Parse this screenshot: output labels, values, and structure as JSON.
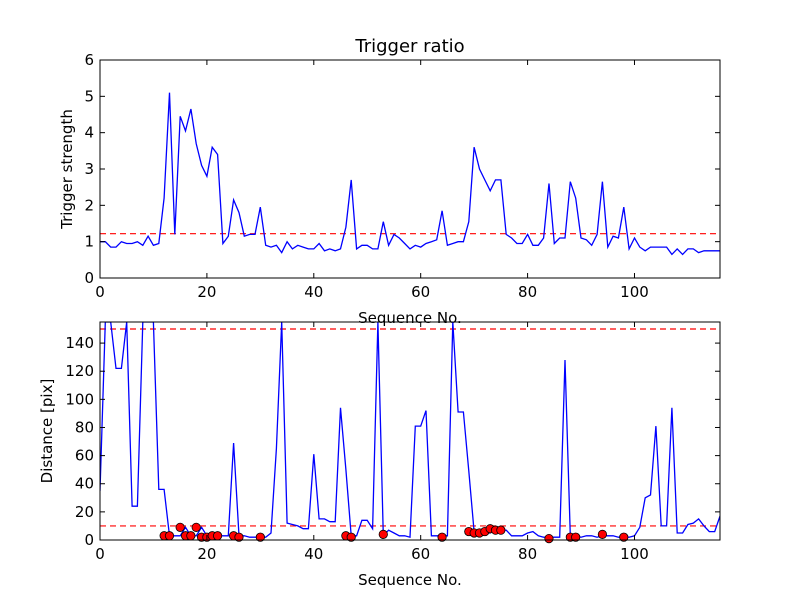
{
  "chart_data": [
    {
      "type": "line",
      "title": "Trigger ratio",
      "xlabel": "Sequence No.",
      "ylabel": "Trigger strength",
      "xlim": [
        0,
        116
      ],
      "ylim": [
        0,
        6
      ],
      "x_ticks": [
        0,
        20,
        40,
        60,
        80,
        100
      ],
      "y_ticks": [
        0,
        1,
        2,
        3,
        4,
        5,
        6
      ],
      "grid": false,
      "series": [
        {
          "color": "#0000ff",
          "x": [
            0,
            1,
            2,
            3,
            4,
            5,
            6,
            7,
            8,
            9,
            10,
            11,
            12,
            13,
            14,
            15,
            16,
            17,
            18,
            19,
            20,
            21,
            22,
            23,
            24,
            25,
            26,
            27,
            28,
            29,
            30,
            31,
            32,
            33,
            34,
            35,
            36,
            37,
            38,
            39,
            40,
            41,
            42,
            43,
            44,
            45,
            46,
            47,
            48,
            49,
            50,
            51,
            52,
            53,
            54,
            55,
            56,
            57,
            58,
            59,
            60,
            61,
            62,
            63,
            64,
            65,
            66,
            67,
            68,
            69,
            70,
            71,
            72,
            73,
            74,
            75,
            76,
            77,
            78,
            79,
            80,
            81,
            82,
            83,
            84,
            85,
            86,
            87,
            88,
            89,
            90,
            91,
            92,
            93,
            94,
            95,
            96,
            97,
            98,
            99,
            100,
            101,
            102,
            103,
            104,
            105,
            106,
            107,
            108,
            109,
            110,
            111,
            112,
            113,
            114,
            115,
            116
          ],
          "y": [
            1.0,
            1.0,
            0.85,
            0.85,
            1.0,
            0.95,
            0.95,
            1.0,
            0.9,
            1.15,
            0.9,
            0.95,
            2.2,
            5.1,
            1.2,
            4.45,
            4.05,
            4.65,
            3.7,
            3.1,
            2.8,
            3.6,
            3.4,
            0.95,
            1.15,
            2.15,
            1.8,
            1.15,
            1.2,
            1.2,
            1.95,
            0.9,
            0.85,
            0.9,
            0.7,
            1.0,
            0.8,
            0.9,
            0.85,
            0.8,
            0.8,
            0.95,
            0.75,
            0.8,
            0.75,
            0.8,
            1.4,
            2.7,
            0.8,
            0.9,
            0.9,
            0.8,
            0.8,
            1.55,
            0.9,
            1.2,
            1.1,
            0.95,
            0.8,
            0.9,
            0.85,
            0.95,
            1.0,
            1.05,
            1.85,
            0.9,
            0.95,
            1.0,
            1.0,
            1.55,
            3.6,
            3.0,
            2.7,
            2.4,
            2.7,
            2.7,
            1.2,
            1.1,
            0.95,
            0.95,
            1.2,
            0.9,
            0.9,
            1.1,
            2.6,
            0.95,
            1.1,
            1.1,
            2.65,
            2.2,
            1.1,
            1.05,
            0.9,
            1.2,
            2.65,
            0.85,
            1.15,
            1.1,
            1.95,
            0.8,
            1.1,
            0.85,
            0.75,
            0.85,
            0.85,
            0.85,
            0.85,
            0.65,
            0.8,
            0.65,
            0.8,
            0.8,
            0.7,
            0.75,
            0.75,
            0.75,
            0.75
          ]
        }
      ],
      "threshold": {
        "value": 1.22,
        "color": "#ff0000",
        "style": "dashed"
      }
    },
    {
      "type": "line",
      "title": "",
      "xlabel": "Sequence No.",
      "ylabel": "Distance [pix]",
      "xlim": [
        0,
        116
      ],
      "ylim": [
        0,
        155
      ],
      "x_ticks": [
        0,
        20,
        40,
        60,
        80,
        100
      ],
      "y_ticks": [
        0,
        20,
        40,
        60,
        80,
        100,
        120,
        140
      ],
      "grid": false,
      "series": [
        {
          "color": "#0000ff",
          "x": [
            0,
            1,
            2,
            3,
            4,
            5,
            6,
            7,
            8,
            9,
            10,
            11,
            12,
            13,
            14,
            15,
            16,
            17,
            18,
            19,
            20,
            21,
            22,
            23,
            24,
            25,
            26,
            27,
            28,
            29,
            30,
            31,
            32,
            33,
            34,
            35,
            36,
            37,
            38,
            39,
            40,
            41,
            42,
            43,
            44,
            45,
            46,
            47,
            48,
            49,
            50,
            51,
            52,
            53,
            54,
            55,
            56,
            57,
            58,
            59,
            60,
            61,
            62,
            63,
            64,
            65,
            66,
            67,
            68,
            69,
            70,
            71,
            72,
            73,
            74,
            75,
            76,
            77,
            78,
            79,
            80,
            81,
            82,
            83,
            84,
            85,
            86,
            87,
            88,
            89,
            90,
            91,
            92,
            93,
            94,
            95,
            96,
            97,
            98,
            99,
            100,
            101,
            102,
            103,
            104,
            105,
            106,
            107,
            108,
            109,
            110,
            111,
            112,
            113,
            114,
            115,
            116
          ],
          "y": [
            35,
            155,
            155,
            122,
            122,
            155,
            24,
            24,
            155,
            155,
            155,
            36,
            36,
            3,
            3,
            3,
            9,
            3,
            3,
            9,
            3,
            3,
            3,
            3,
            3,
            69,
            3,
            3,
            2,
            2,
            2,
            2,
            5,
            65,
            155,
            12,
            11,
            10,
            8,
            8,
            61,
            15,
            15,
            13,
            13,
            94,
            50,
            3,
            3,
            14,
            14,
            8,
            155,
            3,
            7,
            5,
            3,
            3,
            2,
            81,
            81,
            92,
            3,
            3,
            3,
            3,
            155,
            91,
            91,
            49,
            6,
            5,
            5,
            5,
            8,
            7,
            7,
            3,
            3,
            3,
            5,
            6,
            3,
            2,
            2,
            2,
            2,
            128,
            3,
            3,
            2,
            3,
            3,
            2,
            3,
            3,
            3,
            2,
            2,
            2,
            3,
            9,
            30,
            32,
            81,
            10,
            10,
            94,
            5,
            5,
            11,
            12,
            15,
            10,
            6,
            6,
            17
          ]
        }
      ],
      "markers": {
        "color": "#ff0000",
        "x": [
          12,
          13,
          15,
          16,
          17,
          18,
          19,
          20,
          21,
          22,
          25,
          26,
          30,
          46,
          47,
          53,
          64,
          69,
          70,
          71,
          72,
          73,
          74,
          75,
          84,
          88,
          89,
          94,
          98
        ],
        "y": [
          3,
          3,
          9,
          3,
          3,
          9,
          2,
          2,
          3,
          3,
          3,
          2,
          2,
          3,
          2,
          4,
          2,
          6,
          5,
          5,
          6,
          8,
          7,
          7,
          1,
          2,
          2,
          4,
          2
        ]
      },
      "thresholds": [
        {
          "value": 150,
          "color": "#ff0000",
          "style": "dashed"
        },
        {
          "value": 10,
          "color": "#ff0000",
          "style": "dashed"
        }
      ]
    }
  ]
}
